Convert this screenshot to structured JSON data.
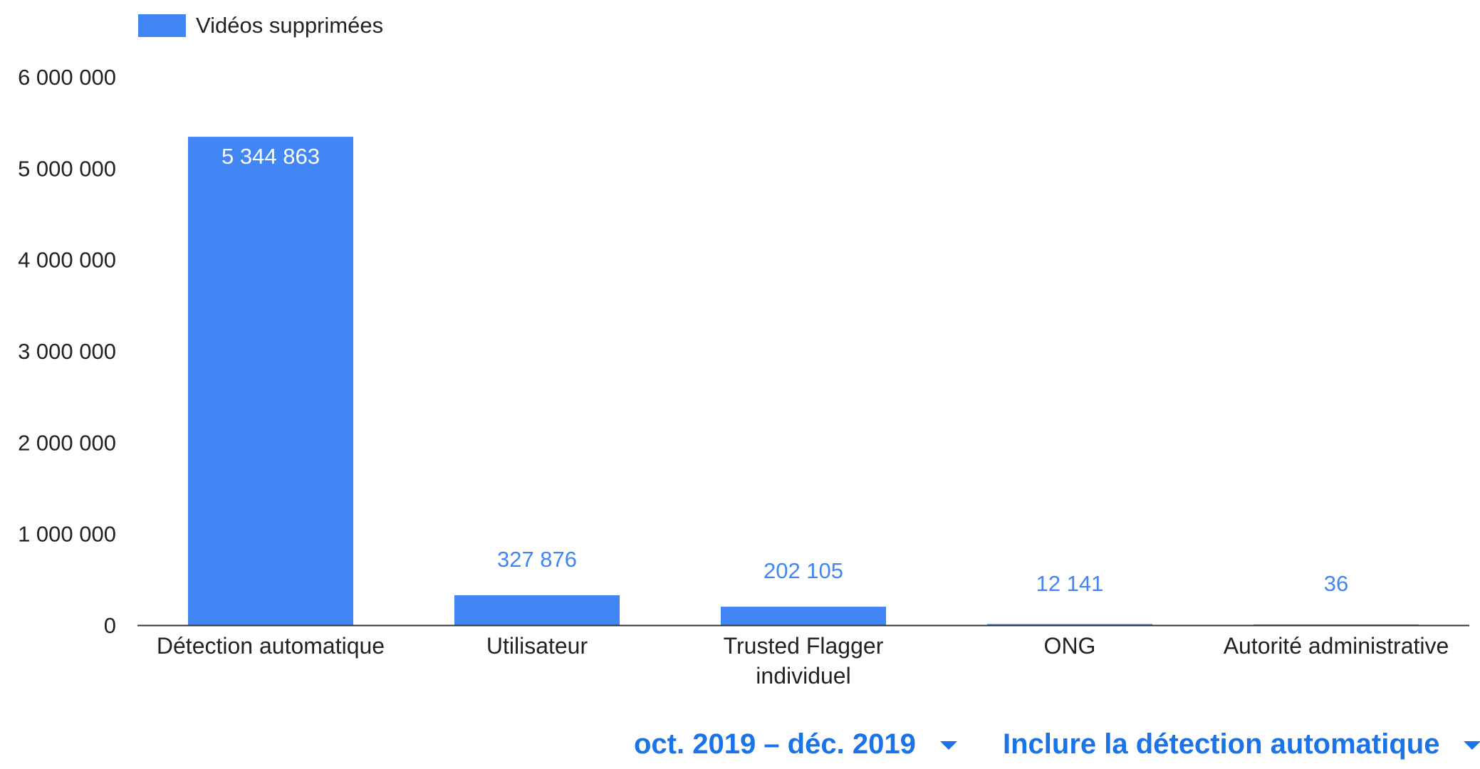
{
  "chart_data": {
    "type": "bar",
    "title": "",
    "xlabel": "",
    "ylabel": "",
    "categories": [
      [
        "Détection automatique"
      ],
      [
        "Utilisateur"
      ],
      [
        "Trusted Flagger",
        "individuel"
      ],
      [
        "ONG"
      ],
      [
        "Autorité administrative"
      ]
    ],
    "series": [
      {
        "name": "Vidéos supprimées",
        "color": "#4285f4",
        "values": [
          5344863,
          327876,
          202105,
          12141,
          36
        ],
        "value_labels": [
          "5 344 863",
          "327 876",
          "202 105",
          "12 141",
          "36"
        ]
      }
    ],
    "ylim": [
      0,
      6000000
    ],
    "yticks": [
      0,
      1000000,
      2000000,
      3000000,
      4000000,
      5000000,
      6000000
    ],
    "ytick_labels": [
      "0",
      "1 000 000",
      "2 000 000",
      "3 000 000",
      "4 000 000",
      "5 000 000",
      "6 000 000"
    ],
    "grid": false,
    "legend_position": "top-left",
    "label_inside_color": "#ffffff",
    "label_outside_color": "#4285f4"
  },
  "controls": {
    "period": {
      "label": "oct. 2019 – déc. 2019",
      "icon": "caret-down-icon"
    },
    "detection": {
      "label": "Inclure la détection automatique",
      "icon": "caret-down-icon"
    }
  },
  "accent_color": "#1a73e8"
}
